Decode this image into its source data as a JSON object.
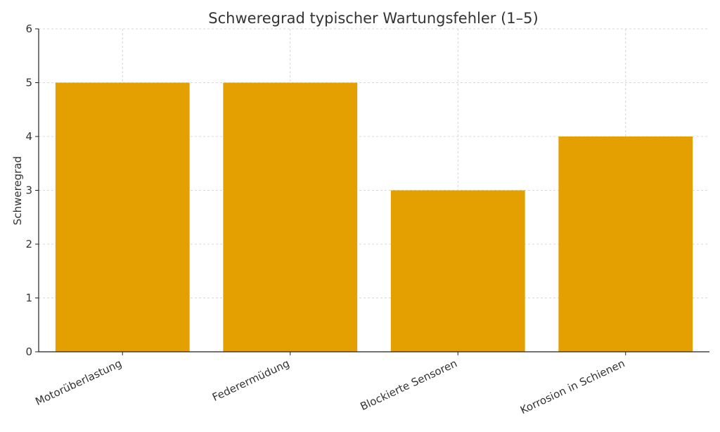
{
  "chart_data": {
    "type": "bar",
    "title": "Schweregrad typischer Wartungsfehler (1–5)",
    "xlabel": "",
    "ylabel": "Schweregrad",
    "categories": [
      "Motorüberlastung",
      "Federermüdung",
      "Blockierte Sensoren",
      "Korrosion in Schienen"
    ],
    "values": [
      5,
      5,
      3,
      4
    ],
    "ylim": [
      0,
      6
    ],
    "yticks": [
      "0",
      "1",
      "2",
      "3",
      "4",
      "5",
      "6"
    ],
    "grid": true,
    "bar_color": "#e3a000"
  }
}
